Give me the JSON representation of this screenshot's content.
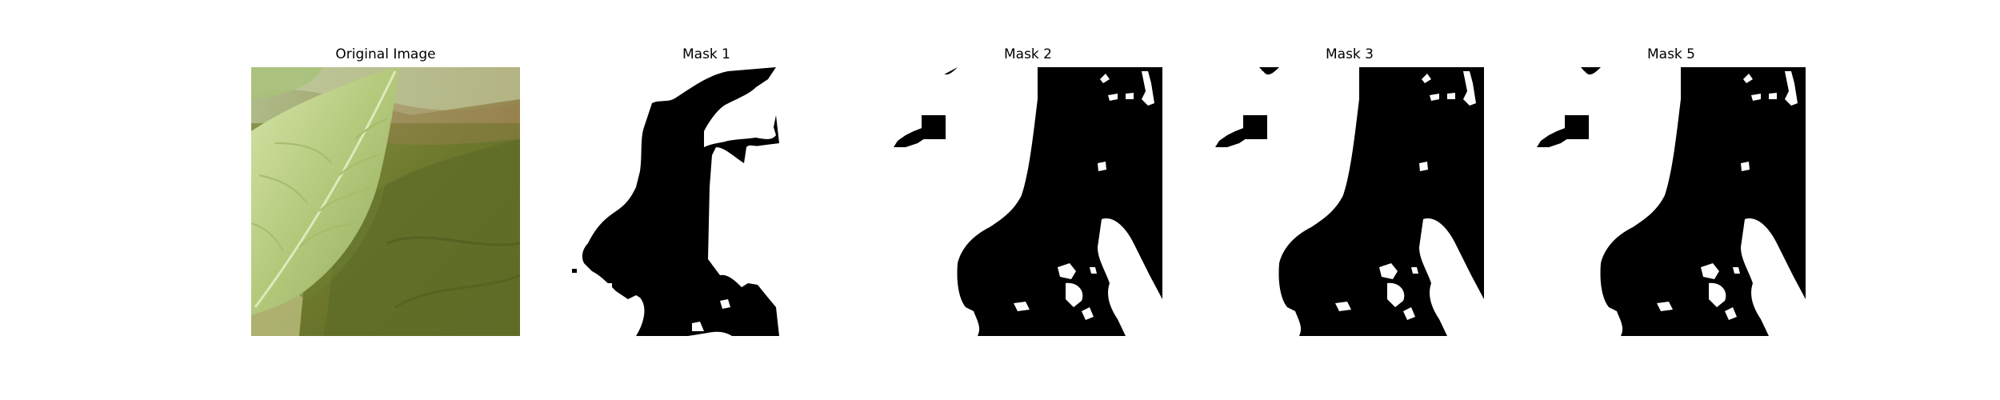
{
  "figure": {
    "panels": [
      {
        "title": "Original Image",
        "kind": "photo",
        "subject": "leaf"
      },
      {
        "title": "Mask 1",
        "kind": "binary-mask"
      },
      {
        "title": "Mask 2",
        "kind": "binary-mask"
      },
      {
        "title": "Mask 3",
        "kind": "binary-mask"
      },
      {
        "title": "Mask 5",
        "kind": "binary-mask"
      }
    ],
    "colors": {
      "background": "#ffffff",
      "mask_foreground": "#ffffff",
      "mask_background": "#000000",
      "leaf_light": "#c9dc9c",
      "leaf_mid": "#93a55a",
      "leaf_dark": "#5b6625"
    }
  }
}
